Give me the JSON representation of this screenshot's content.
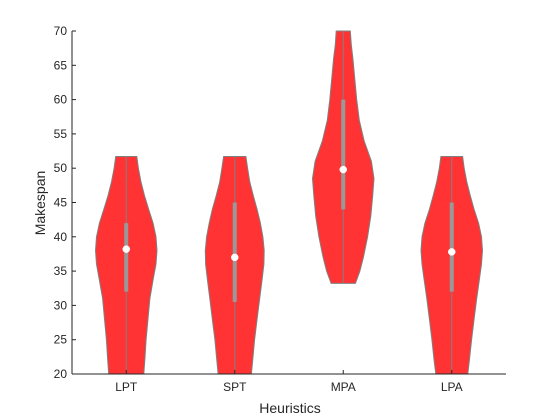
{
  "chart_data": {
    "type": "violin",
    "title": "",
    "xlabel": "Heuristics",
    "ylabel": "Makespan",
    "ylim": [
      20,
      70
    ],
    "yticks": [
      20,
      25,
      30,
      35,
      40,
      45,
      50,
      55,
      60,
      65,
      70
    ],
    "categories": [
      "LPT",
      "SPT",
      "MPA",
      "LPA"
    ],
    "fill_color": "#ff3333",
    "edge_color": "#808080",
    "iqr_color": "#999999",
    "median_color": "#ffffff",
    "grid": false,
    "violins": [
      {
        "category": "LPT",
        "min": 20,
        "max": 51.7,
        "median": 38.2,
        "q1": 32,
        "q3": 42,
        "profile": [
          [
            20,
            0.55
          ],
          [
            22,
            0.58
          ],
          [
            25,
            0.62
          ],
          [
            28,
            0.68
          ],
          [
            31,
            0.74
          ],
          [
            34,
            0.85
          ],
          [
            36,
            0.93
          ],
          [
            38,
            0.96
          ],
          [
            40,
            0.93
          ],
          [
            42,
            0.84
          ],
          [
            44,
            0.7
          ],
          [
            46,
            0.57
          ],
          [
            48,
            0.46
          ],
          [
            50,
            0.38
          ],
          [
            51.7,
            0.33
          ]
        ]
      },
      {
        "category": "SPT",
        "min": 20,
        "max": 51.7,
        "median": 37,
        "q1": 30.5,
        "q3": 45,
        "profile": [
          [
            20,
            0.52
          ],
          [
            22,
            0.56
          ],
          [
            25,
            0.62
          ],
          [
            28,
            0.7
          ],
          [
            31,
            0.78
          ],
          [
            34,
            0.86
          ],
          [
            36,
            0.91
          ],
          [
            38,
            0.92
          ],
          [
            40,
            0.88
          ],
          [
            42,
            0.8
          ],
          [
            44,
            0.7
          ],
          [
            46,
            0.58
          ],
          [
            48,
            0.47
          ],
          [
            50,
            0.4
          ],
          [
            51.7,
            0.35
          ]
        ]
      },
      {
        "category": "MPA",
        "min": 33.2,
        "max": 70,
        "median": 49.8,
        "q1": 44,
        "q3": 60,
        "profile": [
          [
            33.2,
            0.38
          ],
          [
            35,
            0.52
          ],
          [
            37,
            0.63
          ],
          [
            40,
            0.76
          ],
          [
            43,
            0.86
          ],
          [
            46,
            0.92
          ],
          [
            48.5,
            0.96
          ],
          [
            51,
            0.88
          ],
          [
            54,
            0.65
          ],
          [
            57,
            0.5
          ],
          [
            60,
            0.42
          ],
          [
            63,
            0.36
          ],
          [
            66,
            0.3
          ],
          [
            68,
            0.25
          ],
          [
            70,
            0.22
          ]
        ]
      },
      {
        "category": "LPA",
        "min": 20,
        "max": 51.7,
        "median": 37.8,
        "q1": 32,
        "q3": 45,
        "profile": [
          [
            20,
            0.5
          ],
          [
            22,
            0.55
          ],
          [
            25,
            0.62
          ],
          [
            28,
            0.7
          ],
          [
            31,
            0.78
          ],
          [
            34,
            0.87
          ],
          [
            36,
            0.93
          ],
          [
            38,
            0.96
          ],
          [
            40,
            0.93
          ],
          [
            42,
            0.84
          ],
          [
            44,
            0.7
          ],
          [
            46,
            0.58
          ],
          [
            48,
            0.47
          ],
          [
            50,
            0.39
          ],
          [
            51.7,
            0.34
          ]
        ]
      }
    ]
  }
}
